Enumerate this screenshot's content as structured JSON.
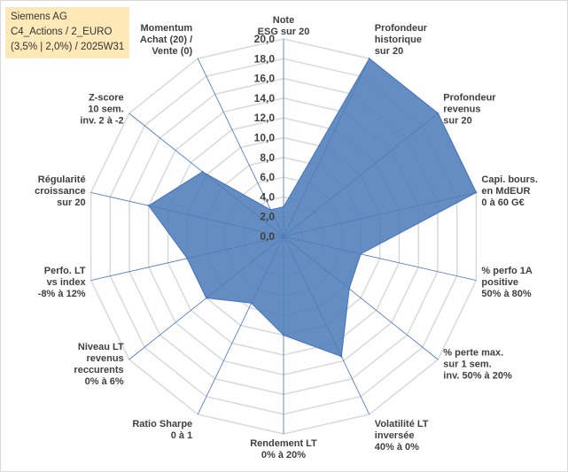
{
  "info_box": {
    "line1": "Siemens AG",
    "line2": "C4_Actions / 2_EURO",
    "line3": "(3,5% | 2,0%) / 2025W31"
  },
  "chart_data": {
    "type": "radar",
    "rmin": 0,
    "rmax": 20,
    "tick_step": 2,
    "tick_labels": [
      "0,0",
      "2,0",
      "4,0",
      "6,0",
      "8,0",
      "10,0",
      "12,0",
      "14,0",
      "16,0",
      "18,0",
      "20,0"
    ],
    "grid": true,
    "legend": "none",
    "colors": {
      "fill": "#4f7db8",
      "stroke": "#4472c4",
      "grid": "#d9d9d9",
      "spoke": "#4472c4"
    },
    "axes": [
      {
        "label": [
          "Note",
          "ESG sur 20"
        ],
        "value": 3.0
      },
      {
        "label": [
          "Profondeur",
          "historique",
          "sur 20"
        ],
        "value": 20.0
      },
      {
        "label": [
          "Profondeur",
          "revenus",
          "sur 20"
        ],
        "value": 20.0
      },
      {
        "label": [
          "Capi. bours.",
          "en MdEUR",
          "0 à 60 G€"
        ],
        "value": 20.0
      },
      {
        "label": [
          "% perfo 1A",
          "positive",
          "50% à 80%"
        ],
        "value": 8.0
      },
      {
        "label": [
          "% perte max.",
          "sur 1 sem.",
          "inv. 50% à 20%"
        ],
        "value": 8.5
      },
      {
        "label": [
          "Volatilité LT",
          "inversée",
          "40% à 0%"
        ],
        "value": 13.5
      },
      {
        "label": [
          "Rendement LT",
          "0% à 20%"
        ],
        "value": 10.0
      },
      {
        "label": [
          "Ratio Sharpe",
          "0 à 1"
        ],
        "value": 7.5
      },
      {
        "label": [
          "Niveau LT",
          "revenus",
          "reccurents",
          "0% à 6%"
        ],
        "value": 10.0
      },
      {
        "label": [
          "Perfo. LT",
          "vs index",
          "-8% à 12%"
        ],
        "value": 10.0
      },
      {
        "label": [
          "Régularité",
          "croissance",
          "sur 20"
        ],
        "value": 14.0
      },
      {
        "label": [
          "Z-score",
          "10 sem.",
          "inv. 2 à -2"
        ],
        "value": 10.5
      },
      {
        "label": [
          "Momentum",
          "Achat (20) /",
          "Vente (0)"
        ],
        "value": 3.0
      }
    ]
  }
}
